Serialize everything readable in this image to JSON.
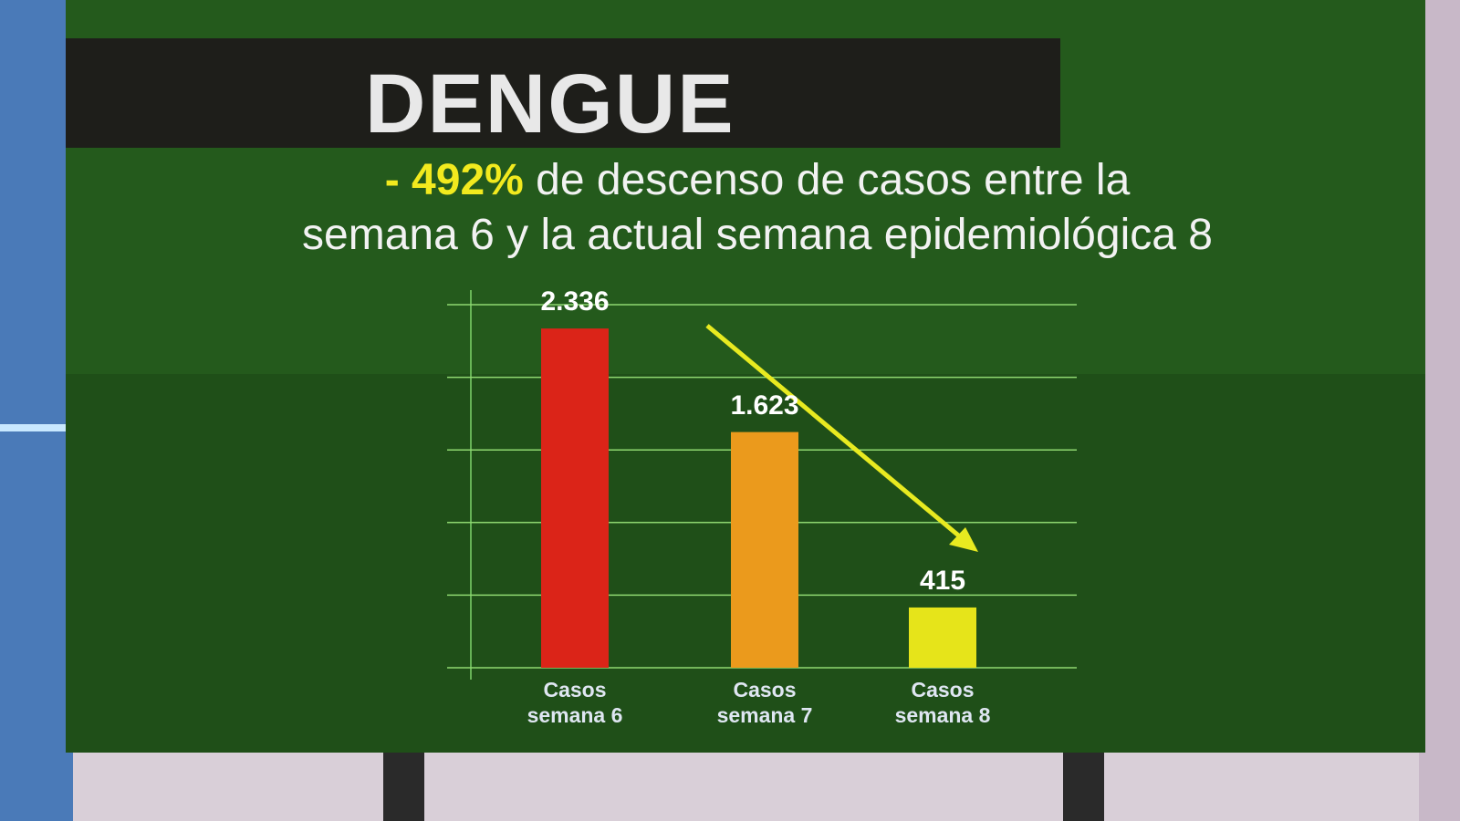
{
  "chart_data": {
    "type": "bar",
    "title": "DENGUE",
    "highlight": "- 492%",
    "subtitle_lines": [
      "de descenso de casos entre la",
      "semana 6 y la actual semana epidemiológica 8"
    ],
    "categories": [
      "Casos semana 6",
      "Casos semana 7",
      "Casos semana 8"
    ],
    "values": [
      2336,
      1623,
      415
    ],
    "value_labels": [
      "2.336",
      "1.623",
      "415"
    ],
    "colors": [
      "#db2418",
      "#eb9a1c",
      "#e6e41a"
    ],
    "ylim": [
      0,
      2500
    ],
    "yticks": [
      0,
      500,
      1000,
      1500,
      2000,
      2500
    ],
    "grid": true
  }
}
